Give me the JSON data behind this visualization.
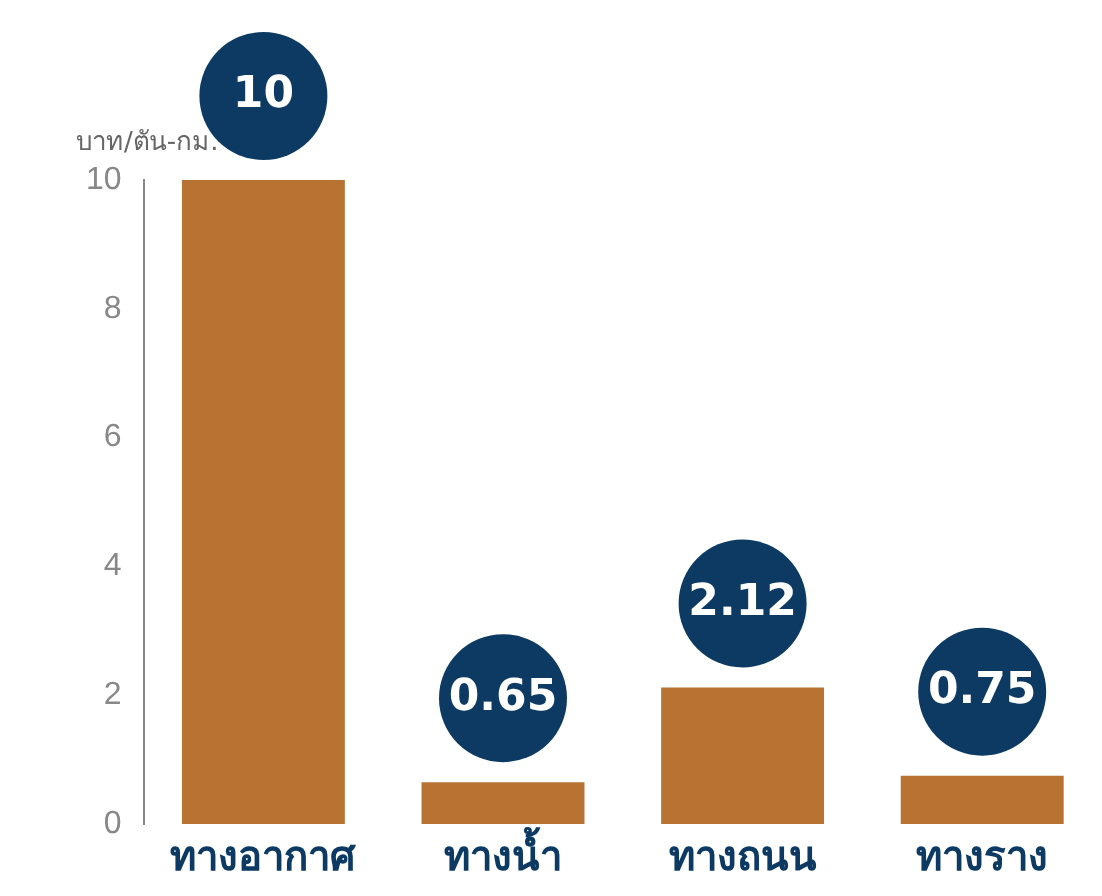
{
  "chart_data": {
    "type": "bar",
    "ylabel": "บาท/ตัน-กม.",
    "categories": [
      "ทางอากาศ",
      "ทางน้ำ",
      "ทางถนน",
      "ทางราง"
    ],
    "values": [
      10,
      0.65,
      2.12,
      0.75
    ],
    "color": "#b87332",
    "ylim": [
      0,
      10
    ],
    "yticks": [
      0,
      2,
      4,
      6,
      8,
      10
    ],
    "grid": false,
    "legend": false,
    "data_labels": true
  }
}
